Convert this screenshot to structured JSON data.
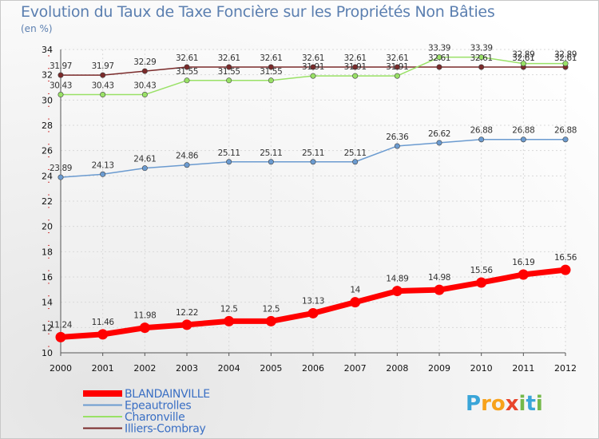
{
  "title": "Evolution du Taux de Taxe Foncière sur les Propriétés Non Bâties",
  "unit_label": "(en %)",
  "logo": {
    "letters": [
      "P",
      "r",
      "o",
      "x",
      "i",
      "t",
      "i"
    ],
    "colors": [
      "#3aa5d8",
      "#f7a21b",
      "#f7a21b",
      "#e8452c",
      "#74b84a",
      "#3aa5d8",
      "#74b84a"
    ]
  },
  "chart_data": {
    "type": "line",
    "x": [
      "2000",
      "2001",
      "2002",
      "2003",
      "2004",
      "2005",
      "2006",
      "2007",
      "2008",
      "2009",
      "2010",
      "2011",
      "2012"
    ],
    "ylim": [
      10,
      34
    ],
    "yticks": [
      10,
      12,
      14,
      16,
      18,
      20,
      22,
      24,
      26,
      28,
      30,
      32,
      34
    ],
    "grid": true,
    "legend_position": "bottom-left",
    "series": [
      {
        "name": "BLANDAINVILLE",
        "color": "#ff0000",
        "values": [
          11.24,
          11.46,
          11.98,
          12.22,
          12.5,
          12.5,
          13.13,
          14,
          14.89,
          14.98,
          15.56,
          16.19,
          16.56
        ]
      },
      {
        "name": "Epeautrolles",
        "color": "#6b9bd0",
        "values": [
          23.89,
          24.13,
          24.61,
          24.86,
          25.11,
          25.11,
          25.11,
          25.11,
          26.36,
          26.62,
          26.88,
          26.88,
          26.88
        ]
      },
      {
        "name": "Charonville",
        "color": "#99e166",
        "values": [
          30.43,
          30.43,
          30.43,
          31.55,
          31.55,
          31.55,
          31.91,
          31.91,
          31.91,
          33.39,
          33.39,
          32.89,
          32.89
        ]
      },
      {
        "name": "Illiers-Combray",
        "color": "#7a2a2a",
        "values": [
          31.97,
          31.97,
          32.29,
          32.61,
          32.61,
          32.61,
          32.61,
          32.61,
          32.61,
          32.61,
          32.61,
          32.61,
          32.61
        ]
      }
    ]
  }
}
